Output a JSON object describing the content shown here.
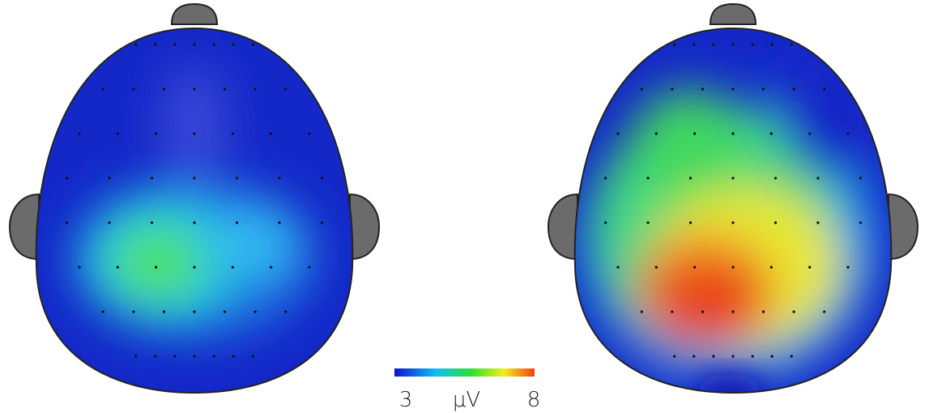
{
  "colorbar": {
    "min": 3,
    "max": 8,
    "unit": "μV"
  }
}
